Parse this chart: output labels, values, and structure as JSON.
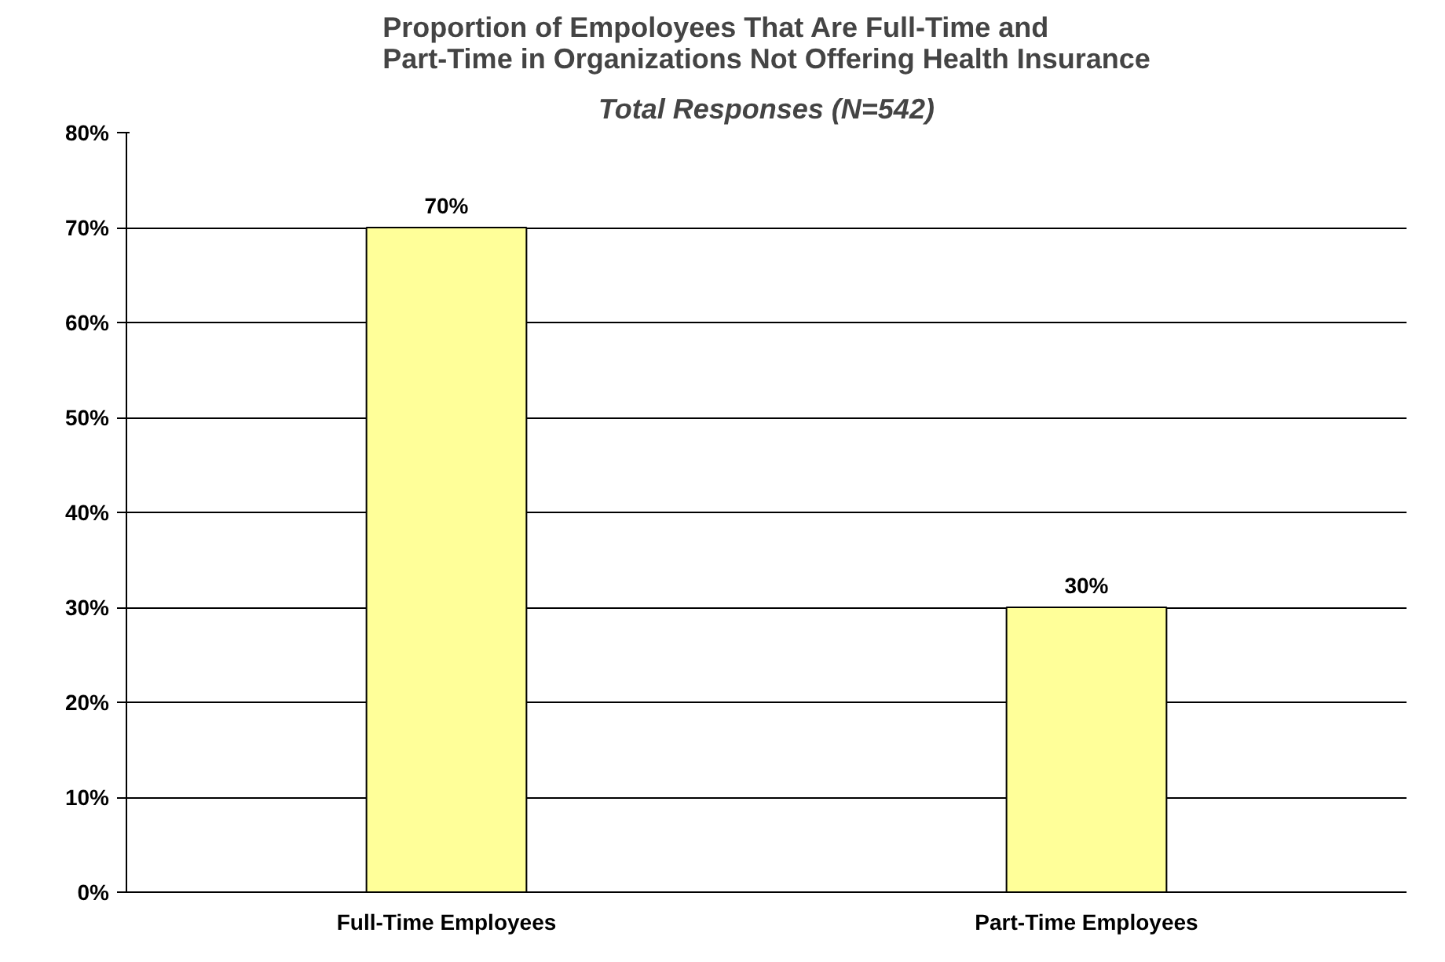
{
  "chart_data": {
    "type": "bar",
    "title": "Proportion of Empoloyees That Are Full-Time and\nPart-Time in Organizations Not Offering Health Insurance",
    "subtitle": "Total Responses (N=542)",
    "categories": [
      "Full-Time Employees",
      "Part-Time Employees"
    ],
    "series": [
      {
        "color": "#ffff99",
        "values": [
          70,
          30
        ],
        "value_labels": [
          "70%",
          "30%"
        ]
      }
    ],
    "ylim": [
      0,
      80
    ],
    "yticks": [
      {
        "value": 0,
        "label": "0%"
      },
      {
        "value": 10,
        "label": "10%"
      },
      {
        "value": 20,
        "label": "20%"
      },
      {
        "value": 30,
        "label": "30%"
      },
      {
        "value": 40,
        "label": "40%"
      },
      {
        "value": 50,
        "label": "50%"
      },
      {
        "value": 60,
        "label": "60%"
      },
      {
        "value": 70,
        "label": "70%"
      },
      {
        "value": 80,
        "label": "80%"
      }
    ],
    "grid": "y"
  }
}
